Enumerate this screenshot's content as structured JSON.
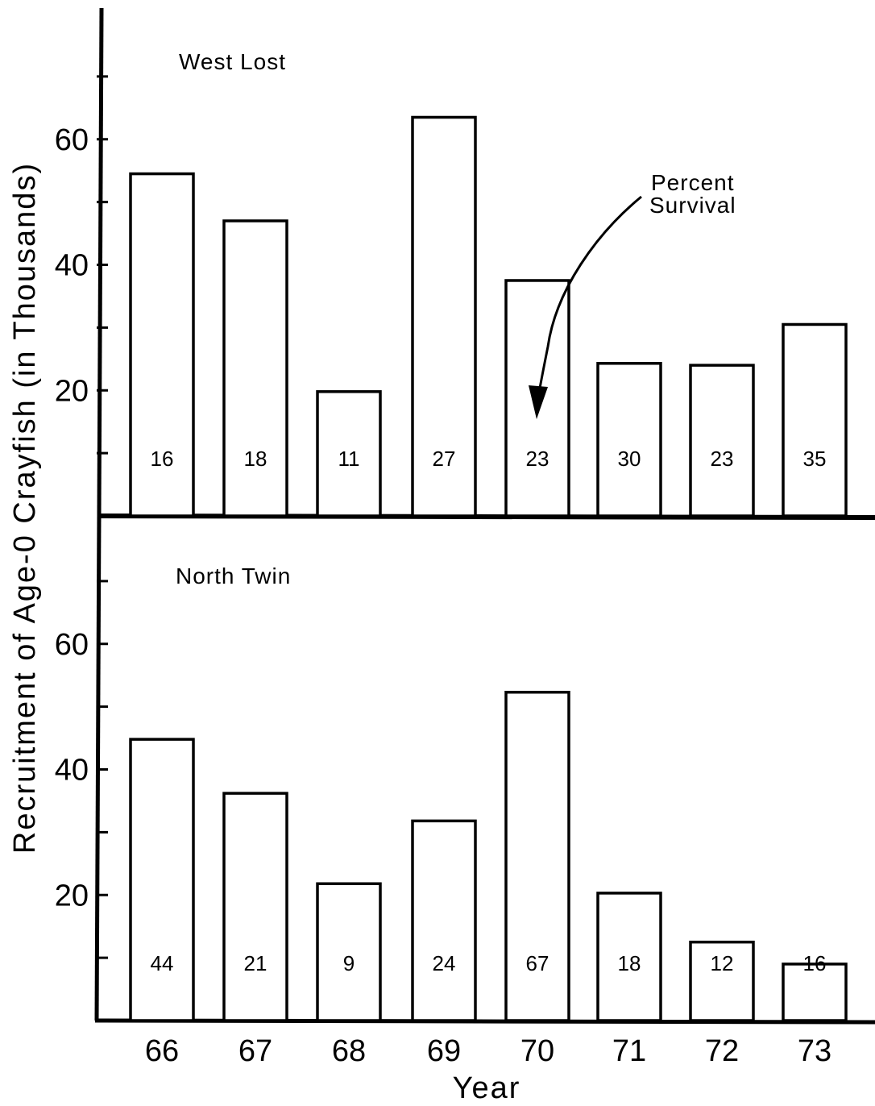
{
  "chart_data": {
    "type": "bar",
    "ylabel": "Recruitment of Age-0 Crayfish (in Thousands)",
    "xlabel": "Year",
    "categories": [
      "66",
      "67",
      "68",
      "69",
      "70",
      "71",
      "72",
      "73"
    ],
    "ylim": [
      0,
      80
    ],
    "y_ticks": [
      "20",
      "40",
      "60"
    ],
    "y_minor_ticks": [
      10,
      30,
      50,
      70
    ],
    "grid": false,
    "panels": [
      {
        "title": "West Lost",
        "values": [
          54.5,
          47,
          19.8,
          63.5,
          37.5,
          24.3,
          24,
          30.5
        ],
        "bar_labels": [
          "16",
          "18",
          "11",
          "27",
          "23",
          "30",
          "23",
          "35"
        ]
      },
      {
        "title": "North Twin",
        "values": [
          44.8,
          36.2,
          21.8,
          31.8,
          52.3,
          20.3,
          12.5,
          9
        ],
        "bar_labels": [
          "44",
          "21",
          "9",
          "24",
          "67",
          "18",
          "12",
          "16"
        ]
      }
    ],
    "annotation": {
      "line1": "Percent",
      "line2": "Survival"
    }
  }
}
